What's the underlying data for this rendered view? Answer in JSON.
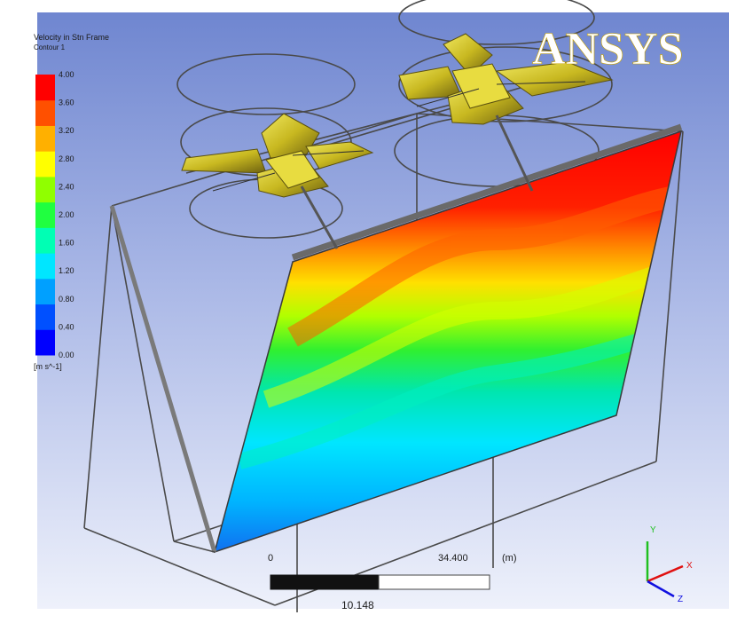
{
  "logo": {
    "text_a": "ANSYS",
    "color_a": "#ffffff",
    "color_b": "#f2c200"
  },
  "legend": {
    "title": "Velocity in Stn Frame",
    "subtitle": "Contour 1",
    "unit": "[m s^-1]",
    "ticks": [
      "4.00",
      "3.60",
      "3.20",
      "2.80",
      "2.40",
      "2.00",
      "1.60",
      "1.20",
      "0.80",
      "0.40",
      "0.00"
    ],
    "colors": [
      "#0000ff",
      "#0050ff",
      "#00a0ff",
      "#00e6ff",
      "#00ffb4",
      "#20ff40",
      "#90ff00",
      "#ffff00",
      "#ffb000",
      "#ff5000",
      "#ff0000"
    ]
  },
  "scale_bar": {
    "left_label": "0",
    "right_label": "34.400",
    "unit": "(m)",
    "mid_label": "10.148"
  },
  "triad": {
    "y": "Y",
    "x": "X",
    "z": "Z"
  },
  "background": {
    "top": "#6f86d0",
    "bottom": "#eef1fb"
  }
}
